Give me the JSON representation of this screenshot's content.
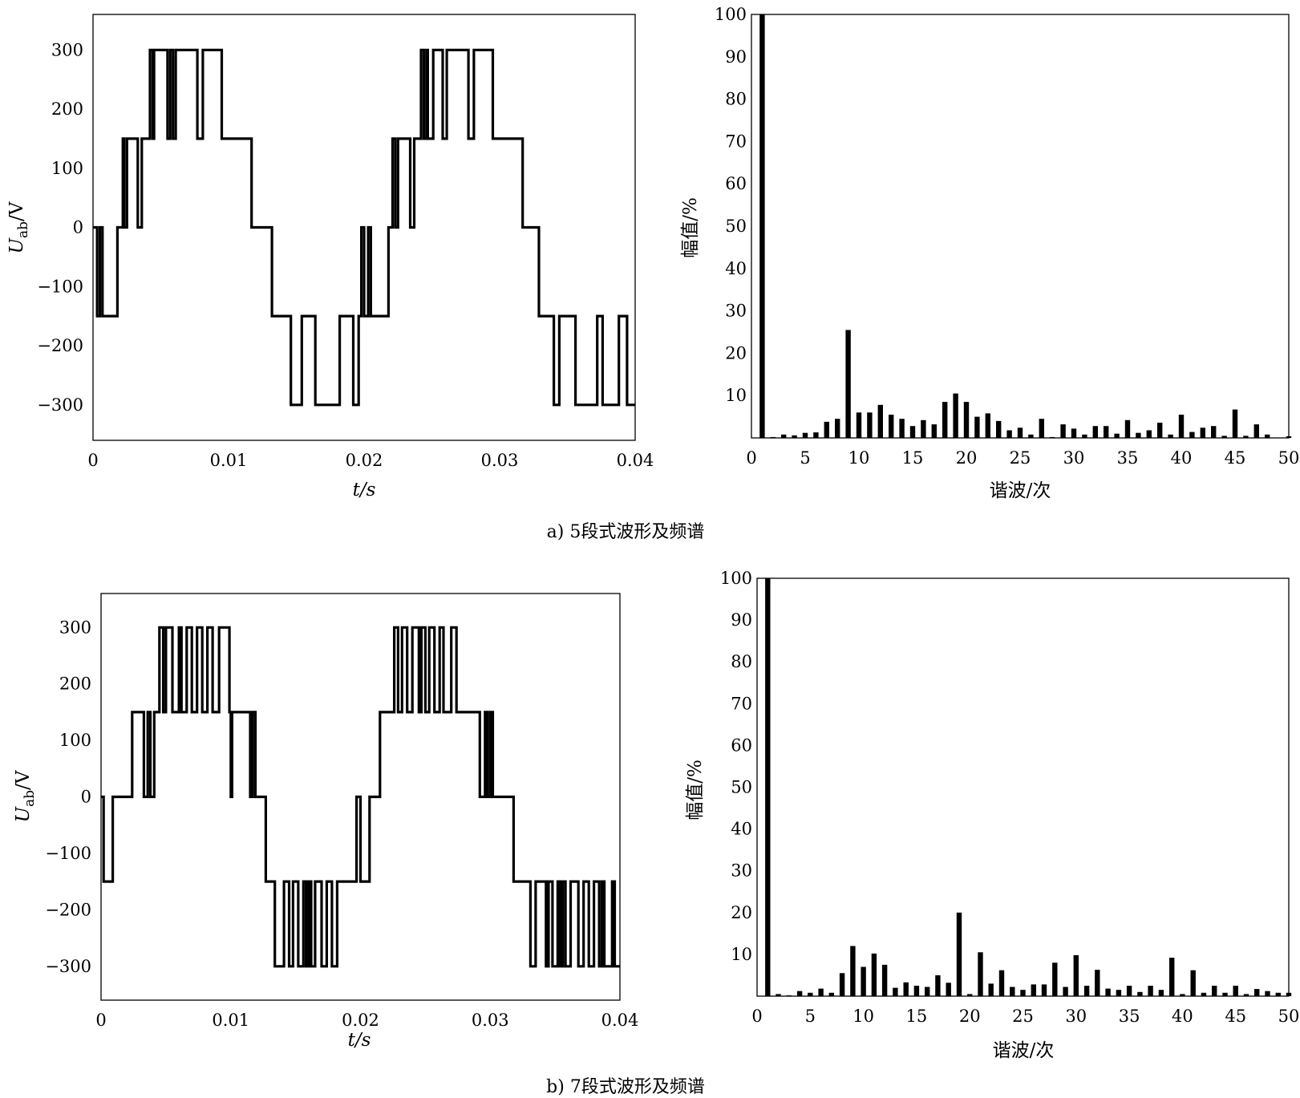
{
  "captions": [
    "a) 5段式波形及频谱",
    "b) 7段式波形及频谱"
  ],
  "chart_data": [
    {
      "type": "line",
      "panel": "a-waveform",
      "xlabel": "t/s",
      "ylabel_main": "U",
      "ylabel_sub": "ab",
      "ylabel_unit": "/V",
      "xlim": [
        0,
        0.04
      ],
      "ylim": [
        -360,
        360
      ],
      "xticks": [
        0,
        0.01,
        0.02,
        0.03,
        0.04
      ],
      "xtick_labels": [
        "0",
        "0.01",
        "0.02",
        "0.03",
        "0.04"
      ],
      "yticks": [
        300,
        200,
        100,
        0,
        -100,
        -200,
        -300
      ],
      "ytick_labels": [
        "300",
        "200",
        "100",
        "0",
        "−100",
        "−200",
        "−300"
      ],
      "series": [
        {
          "step": true,
          "x": [
            0,
            0.0003,
            0.0005,
            0.0007,
            0.0009,
            0.0011,
            0.0018,
            0.0022,
            0.0023,
            0.0025,
            0.0031,
            0.0033,
            0.0036,
            0.0038,
            0.0042,
            0.0044,
            0.0045,
            0.0047,
            0.0053,
            0.0055,
            0.0057,
            0.0059,
            0.0061,
            0.0065,
            0.0077,
            0.0081,
            0.0085,
            0.0095,
            0.0097,
            0.0099,
            0.0101,
            0.0117,
            0.012,
            0.0123,
            0.0127,
            0.0129,
            0.0132,
            0.014,
            0.0146,
            0.0148,
            0.0154,
            0.0158,
            0.0164,
            0.0178,
            0.0182,
            0.0188,
            0.0192,
            0.0196,
            0.0198,
            0.02,
            0.0203,
            0.0205,
            0.021,
            0.0214,
            0.0218,
            0.0221,
            0.0223,
            0.0225,
            0.0227,
            0.0228,
            0.0232,
            0.0234,
            0.0237,
            0.0238,
            0.024,
            0.0242,
            0.0244,
            0.0246,
            0.0247,
            0.0251,
            0.0253,
            0.0255,
            0.0258,
            0.0261,
            0.0265,
            0.0277,
            0.0281,
            0.0285,
            0.0295,
            0.0297,
            0.0301,
            0.0305,
            0.0317,
            0.0321,
            0.0325,
            0.0329,
            0.0333,
            0.0336,
            0.034,
            0.0344,
            0.0348,
            0.0356,
            0.036,
            0.0372,
            0.0376,
            0.0384,
            0.0388,
            0.0394,
            0.04
          ],
          "y": [
            0,
            -150,
            0,
            -150,
            -150,
            -150,
            0,
            150,
            0,
            150,
            150,
            0,
            150,
            150,
            300,
            150,
            300,
            300,
            300,
            150,
            300,
            150,
            300,
            300,
            150,
            300,
            300,
            150,
            150,
            150,
            150,
            0,
            0,
            0,
            0,
            0,
            -150,
            -150,
            -300,
            -300,
            -150,
            -150,
            -300,
            -300,
            -150,
            -150,
            -300,
            -150,
            0,
            -150,
            0,
            -150,
            -150,
            -150,
            0,
            150,
            0,
            150,
            150,
            150,
            150,
            0,
            150,
            150,
            150,
            300,
            150,
            300,
            150,
            300,
            300,
            300,
            150,
            300,
            300,
            150,
            300,
            300,
            150,
            150,
            150,
            150,
            0,
            0,
            0,
            -150,
            -150,
            -150,
            -300,
            -150,
            -150,
            -300,
            -300,
            -150,
            -300,
            -300,
            -150,
            -300,
            -300
          ]
        }
      ]
    },
    {
      "type": "bar",
      "panel": "a-spectrum",
      "xlabel": "谐波/次",
      "ylabel": "幅值/%",
      "xlim": [
        0,
        50
      ],
      "ylim": [
        0,
        100
      ],
      "xticks": [
        0,
        5,
        10,
        15,
        20,
        25,
        30,
        35,
        40,
        45,
        50
      ],
      "yticks": [
        10,
        20,
        30,
        40,
        50,
        60,
        70,
        80,
        90,
        100
      ],
      "categories": [
        1,
        2,
        3,
        4,
        5,
        6,
        7,
        8,
        9,
        10,
        11,
        12,
        13,
        14,
        15,
        16,
        17,
        18,
        19,
        20,
        21,
        22,
        23,
        24,
        25,
        26,
        27,
        28,
        29,
        30,
        31,
        32,
        33,
        34,
        35,
        36,
        37,
        38,
        39,
        40,
        41,
        42,
        43,
        44,
        45,
        46,
        47,
        48,
        49,
        50
      ],
      "values": [
        100,
        0.2,
        0.8,
        0.6,
        1.2,
        1.3,
        3.8,
        4.5,
        25.5,
        6.0,
        6.0,
        7.8,
        5.5,
        4.5,
        2.8,
        4.2,
        3.2,
        8.5,
        10.5,
        8.5,
        5.0,
        5.8,
        4.0,
        1.8,
        2.4,
        0.8,
        4.5,
        0.2,
        3.2,
        2.2,
        0.8,
        2.8,
        2.8,
        1.0,
        4.2,
        1.2,
        1.8,
        3.6,
        0.8,
        5.5,
        1.4,
        2.4,
        2.8,
        0.5,
        6.7,
        0.5,
        3.2,
        0.8,
        0.1,
        0.4
      ]
    },
    {
      "type": "line",
      "panel": "b-waveform",
      "xlabel": "t/s",
      "ylabel_main": "U",
      "ylabel_sub": "ab",
      "ylabel_unit": "/V",
      "xlim": [
        0,
        0.04
      ],
      "ylim": [
        -360,
        360
      ],
      "xticks": [
        0,
        0.01,
        0.02,
        0.03,
        0.04
      ],
      "xtick_labels": [
        "0",
        "0.01",
        "0.02",
        "0.03",
        "0.04"
      ],
      "yticks": [
        300,
        200,
        100,
        0,
        -100,
        -200,
        -300
      ],
      "ytick_labels": [
        "300",
        "200",
        "100",
        "0",
        "−100",
        "−200",
        "−300"
      ],
      "series": [
        {
          "step": true,
          "x": [
            0,
            0.0002,
            0.0008,
            0.0009,
            0.0017,
            0.0024,
            0.0026,
            0.0029,
            0.0033,
            0.0036,
            0.0038,
            0.0041,
            0.0044,
            0.0045,
            0.0048,
            0.005,
            0.0053,
            0.0055,
            0.006,
            0.0062,
            0.0066,
            0.007,
            0.0074,
            0.0078,
            0.0082,
            0.0086,
            0.0091,
            0.0099,
            0.01,
            0.0101,
            0.0115,
            0.0117,
            0.0119,
            0.0122,
            0.0125,
            0.0127,
            0.0131,
            0.0134,
            0.0141,
            0.0145,
            0.0148,
            0.0152,
            0.0156,
            0.0158,
            0.016,
            0.0162,
            0.0165,
            0.017,
            0.0174,
            0.0178,
            0.0182,
            0.0188,
            0.019,
            0.0197,
            0.02,
            0.0207,
            0.0212,
            0.0215,
            0.0216,
            0.0218,
            0.0222,
            0.0224,
            0.0226,
            0.0229,
            0.0232,
            0.0236,
            0.024,
            0.0245,
            0.0247,
            0.025,
            0.0253,
            0.0257,
            0.0261,
            0.0264,
            0.027,
            0.0274,
            0.0279,
            0.0282,
            0.0286,
            0.0292,
            0.0296,
            0.0298,
            0.03,
            0.0302,
            0.0304,
            0.0308,
            0.0318,
            0.032,
            0.0328,
            0.0331,
            0.0335,
            0.0343,
            0.0345,
            0.0348,
            0.0352,
            0.0354,
            0.0356,
            0.0358,
            0.0362,
            0.0368,
            0.0372,
            0.0376,
            0.038,
            0.0384,
            0.0386,
            0.0388,
            0.0394,
            0.0396,
            0.04
          ],
          "y": [
            0,
            -150,
            -150,
            0,
            0,
            150,
            150,
            150,
            0,
            150,
            0,
            150,
            150,
            300,
            150,
            300,
            300,
            150,
            300,
            150,
            300,
            150,
            300,
            150,
            300,
            150,
            300,
            150,
            0,
            150,
            0,
            150,
            0,
            0,
            0,
            -150,
            -150,
            -300,
            -150,
            -300,
            -150,
            -300,
            -150,
            -300,
            -150,
            -300,
            -150,
            -300,
            -150,
            -300,
            -150,
            -150,
            -150,
            0,
            -150,
            0,
            0,
            150,
            150,
            150,
            150,
            150,
            300,
            150,
            300,
            150,
            300,
            150,
            300,
            150,
            300,
            150,
            300,
            150,
            300,
            150,
            150,
            150,
            150,
            0,
            150,
            0,
            150,
            0,
            0,
            0,
            -150,
            -150,
            -150,
            -300,
            -150,
            -300,
            -150,
            -300,
            -150,
            -300,
            -150,
            -300,
            -150,
            -300,
            -150,
            -300,
            -150,
            -300,
            -150,
            -300,
            -150,
            -300,
            -300
          ]
        }
      ]
    },
    {
      "type": "bar",
      "panel": "b-spectrum",
      "xlabel": "谐波/次",
      "ylabel": "幅值/%",
      "xlim": [
        0,
        50
      ],
      "ylim": [
        0,
        100
      ],
      "xticks": [
        0,
        5,
        10,
        15,
        20,
        25,
        30,
        35,
        40,
        45,
        50
      ],
      "yticks": [
        10,
        20,
        30,
        40,
        50,
        60,
        70,
        80,
        90,
        100
      ],
      "categories": [
        1,
        2,
        3,
        4,
        5,
        6,
        7,
        8,
        9,
        10,
        11,
        12,
        13,
        14,
        15,
        16,
        17,
        18,
        19,
        20,
        21,
        22,
        23,
        24,
        25,
        26,
        27,
        28,
        29,
        30,
        31,
        32,
        33,
        34,
        35,
        36,
        37,
        38,
        39,
        40,
        41,
        42,
        43,
        44,
        45,
        46,
        47,
        48,
        49,
        50
      ],
      "values": [
        100,
        0.5,
        0.2,
        1.2,
        0.8,
        1.8,
        0.8,
        5.5,
        12.0,
        7.0,
        10.2,
        7.5,
        2.0,
        3.3,
        2.5,
        2.2,
        5.0,
        3.2,
        20.0,
        0.5,
        10.5,
        3.0,
        6.2,
        2.2,
        1.5,
        2.8,
        2.8,
        8.0,
        2.2,
        9.8,
        2.5,
        6.3,
        1.8,
        1.5,
        2.5,
        1.0,
        2.5,
        1.5,
        9.2,
        0.5,
        6.2,
        0.8,
        2.5,
        0.8,
        2.5,
        0.5,
        1.7,
        1.2,
        0.8,
        0.8
      ]
    }
  ]
}
